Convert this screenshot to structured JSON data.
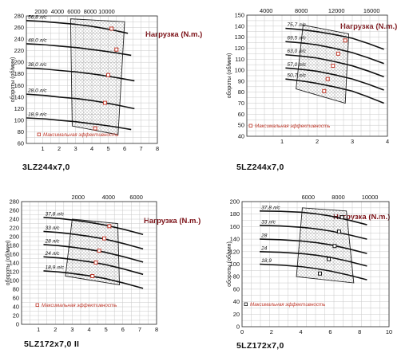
{
  "torque_label": "Нагрузка (N.m.)",
  "legend_label": "Максимальная эффективность",
  "y_axis_label": "обороты (об/мин)",
  "colors": {
    "curve": "#111111",
    "marker_red": "#c0392b",
    "marker_black": "#111111",
    "torque": "#7b1016"
  },
  "chart_data": [
    {
      "type": "line",
      "title": "3LZ244x7,0",
      "xlim": [
        0,
        8
      ],
      "x_ticks": [
        "1",
        "2",
        "3",
        "4",
        "5",
        "6",
        "7",
        "8"
      ],
      "x2_ticks": [
        "2000",
        "4000",
        "6000",
        "8000",
        "10000"
      ],
      "ylim": [
        60,
        280
      ],
      "y_ticks": [
        "60",
        "80",
        "100",
        "120",
        "140",
        "160",
        "180",
        "200",
        "220",
        "240",
        "260",
        "280"
      ],
      "grid": true,
      "series": [
        {
          "name": "56,8 л/с",
          "x": [
            0,
            2,
            4,
            6.2
          ],
          "y": [
            272,
            268,
            262,
            250
          ]
        },
        {
          "name": "48,0 л/с",
          "x": [
            0,
            2,
            4,
            6.4
          ],
          "y": [
            232,
            228,
            222,
            212
          ]
        },
        {
          "name": "38,0 л/с",
          "x": [
            0,
            2,
            4,
            6.6
          ],
          "y": [
            190,
            186,
            180,
            168
          ]
        },
        {
          "name": "28,0 л/с",
          "x": [
            0,
            2,
            4,
            6.6
          ],
          "y": [
            145,
            140,
            134,
            120
          ]
        },
        {
          "name": "18,9 л/с",
          "x": [
            0,
            2,
            4,
            6.4
          ],
          "y": [
            104,
            100,
            94,
            84
          ]
        }
      ],
      "max_efficiency": [
        {
          "x": 5.2,
          "y": 258
        },
        {
          "x": 5.5,
          "y": 222
        },
        {
          "x": 5.0,
          "y": 178
        },
        {
          "x": 4.8,
          "y": 130
        },
        {
          "x": 4.2,
          "y": 86
        }
      ],
      "operating_band": [
        [
          2.7,
          275
        ],
        [
          6.0,
          270
        ],
        [
          5.6,
          75
        ],
        [
          2.8,
          90
        ]
      ]
    },
    {
      "type": "line",
      "title": "5LZ244x7,0",
      "xlim": [
        0,
        4
      ],
      "x_ticks": [
        "1",
        "2",
        "3",
        "4"
      ],
      "x2_ticks": [
        "4000",
        "8000",
        "12000",
        "16000"
      ],
      "ylim": [
        40,
        150
      ],
      "y_ticks": [
        "40",
        "50",
        "60",
        "70",
        "80",
        "90",
        "100",
        "110",
        "120",
        "130",
        "140",
        "150"
      ],
      "grid": true,
      "series": [
        {
          "name": "75,7 л/с",
          "x": [
            1.1,
            2,
            3,
            3.9
          ],
          "y": [
            138,
            135,
            129,
            119
          ]
        },
        {
          "name": "69,5 л/с",
          "x": [
            1.1,
            2,
            3,
            3.9
          ],
          "y": [
            126,
            123,
            116,
            106
          ]
        },
        {
          "name": "63,0 л/с",
          "x": [
            1.1,
            2,
            3,
            3.9
          ],
          "y": [
            114,
            111,
            104,
            94
          ]
        },
        {
          "name": "57,0 л/с",
          "x": [
            1.1,
            2,
            3,
            3.9
          ],
          "y": [
            102,
            99,
            92,
            82
          ]
        },
        {
          "name": "50,7 л/с",
          "x": [
            1.1,
            2,
            3,
            3.9
          ],
          "y": [
            92,
            88,
            81,
            70
          ]
        }
      ],
      "max_efficiency": [
        {
          "x": 2.8,
          "y": 127
        },
        {
          "x": 2.6,
          "y": 115
        },
        {
          "x": 2.45,
          "y": 104
        },
        {
          "x": 2.3,
          "y": 92
        },
        {
          "x": 2.2,
          "y": 81
        }
      ],
      "operating_band": [
        [
          1.6,
          141
        ],
        [
          2.9,
          133
        ],
        [
          2.8,
          70
        ],
        [
          1.4,
          83
        ]
      ]
    },
    {
      "type": "line",
      "title": "5LZ172x7,0 II",
      "xlim": [
        0,
        8
      ],
      "x_ticks": [
        "1",
        "2",
        "3",
        "4",
        "5",
        "6",
        "7",
        "8"
      ],
      "x2_ticks": [
        "2000",
        "4000",
        "6000"
      ],
      "ylim": [
        0,
        280
      ],
      "y_ticks": [
        "0",
        "20",
        "40",
        "60",
        "80",
        "100",
        "120",
        "140",
        "160",
        "180",
        "200",
        "220",
        "240",
        "260",
        "280"
      ],
      "grid": true,
      "series": [
        {
          "name": "37,8 л/с",
          "x": [
            1.3,
            3,
            5,
            7.2
          ],
          "y": [
            244,
            238,
            226,
            205
          ]
        },
        {
          "name": "33 л/с",
          "x": [
            1.3,
            3,
            5,
            7.2
          ],
          "y": [
            212,
            206,
            194,
            172
          ]
        },
        {
          "name": "28 л/с",
          "x": [
            1.3,
            3,
            5,
            7.2
          ],
          "y": [
            182,
            176,
            164,
            142
          ]
        },
        {
          "name": "24 л/с",
          "x": [
            1.3,
            3,
            5,
            7.2
          ],
          "y": [
            154,
            148,
            136,
            114
          ]
        },
        {
          "name": "18,9 л/с",
          "x": [
            1.3,
            3,
            5,
            7.2
          ],
          "y": [
            122,
            116,
            104,
            82
          ]
        }
      ],
      "max_efficiency": [
        {
          "x": 5.2,
          "y": 224
        },
        {
          "x": 4.9,
          "y": 196
        },
        {
          "x": 4.6,
          "y": 168
        },
        {
          "x": 4.4,
          "y": 141
        },
        {
          "x": 4.2,
          "y": 110
        }
      ],
      "operating_band": [
        [
          3.0,
          240
        ],
        [
          5.7,
          230
        ],
        [
          5.8,
          90
        ],
        [
          2.6,
          110
        ]
      ]
    },
    {
      "type": "line",
      "title": "5LZ172x7,0",
      "xlim": [
        0,
        10
      ],
      "x_ticks": [
        "0",
        "2",
        "4",
        "6",
        "8",
        "10"
      ],
      "x2_ticks": [
        "6000",
        "8000",
        "10000"
      ],
      "ylim": [
        0,
        200
      ],
      "y_ticks": [
        "0",
        "20",
        "40",
        "60",
        "80",
        "100",
        "120",
        "140",
        "160",
        "180",
        "200"
      ],
      "grid": true,
      "series": [
        {
          "name": "37,8 л/с",
          "x": [
            1.2,
            4,
            6,
            8.5
          ],
          "y": [
            185,
            183,
            177,
            163
          ]
        },
        {
          "name": "33 л/с",
          "x": [
            1.2,
            4,
            6,
            8.5
          ],
          "y": [
            162,
            159,
            153,
            140
          ]
        },
        {
          "name": "28",
          "x": [
            1.2,
            4,
            6,
            8.5
          ],
          "y": [
            140,
            137,
            131,
            117
          ]
        },
        {
          "name": "24",
          "x": [
            1.2,
            4,
            6,
            8.5
          ],
          "y": [
            120,
            117,
            111,
            97
          ]
        },
        {
          "name": "18,9",
          "x": [
            1.2,
            4,
            6,
            8.5
          ],
          "y": [
            100,
            96,
            89,
            75
          ]
        }
      ],
      "max_efficiency": [
        {
          "x": 6.8,
          "y": 175
        },
        {
          "x": 6.6,
          "y": 152
        },
        {
          "x": 6.3,
          "y": 129
        },
        {
          "x": 5.9,
          "y": 108
        },
        {
          "x": 5.3,
          "y": 85
        }
      ],
      "operating_band": [
        [
          4.1,
          190
        ],
        [
          7.1,
          185
        ],
        [
          7.6,
          70
        ],
        [
          3.7,
          80
        ]
      ]
    }
  ]
}
